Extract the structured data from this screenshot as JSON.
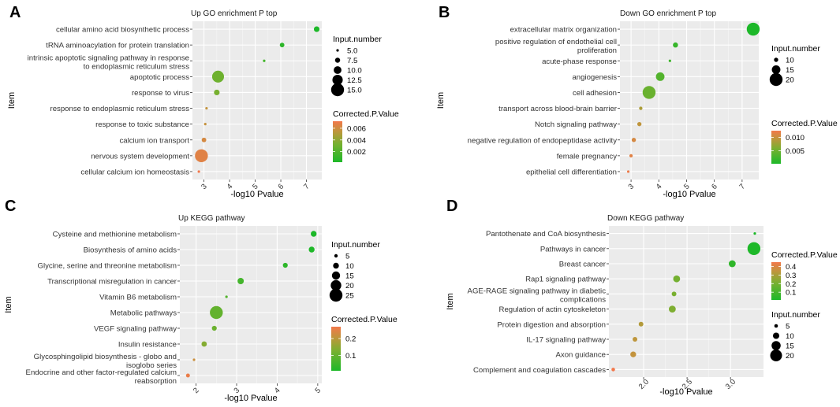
{
  "chart_data": [
    {
      "type": "scatter",
      "panel_label": "A",
      "title": "Up GO enrichment P top",
      "xlabel": "-log10 Pvalue",
      "ylabel": "Item",
      "xlim": [
        2.55,
        7.6
      ],
      "xticks": [
        "3",
        "4",
        "5",
        "6",
        "7"
      ],
      "categories": [
        "cellular amino acid biosynthetic process",
        "tRNA aminoacylation for protein translation",
        "intrinsic apoptotic signaling pathway in response\nto endoplasmic reticulum stress",
        "apoptotic process",
        "response to virus",
        "response to endoplasmic reticulum stress",
        "response to toxic substance",
        "calcium ion transport",
        "nervous system development",
        "cellular calcium ion homeostasis"
      ],
      "x": [
        7.4,
        6.05,
        5.35,
        3.55,
        3.5,
        3.1,
        3.05,
        3.0,
        2.9,
        2.8
      ],
      "size": [
        8,
        7,
        5,
        14,
        8,
        5,
        5,
        7,
        15,
        5
      ],
      "corrected_p": [
        0.0002,
        0.0008,
        0.0015,
        0.003,
        0.0033,
        0.0056,
        0.0057,
        0.0062,
        0.0066,
        0.0072
      ],
      "size_legend_title": "Input.number",
      "size_legend": [
        "5.0",
        "7.5",
        "10.0",
        "12.5",
        "15.0"
      ],
      "size_legend_values": [
        5,
        7.5,
        10,
        12.5,
        15
      ],
      "size_range": [
        5,
        15
      ],
      "color_legend_title": "Corrected.P.Value",
      "color_legend_ticks": [
        "0.006",
        "0.004",
        "0.002"
      ],
      "color_legend_values": [
        0.006,
        0.004,
        0.002
      ],
      "color_range": [
        0.0002,
        0.0072
      ]
    },
    {
      "type": "scatter",
      "panel_label": "B",
      "title": "Down GO enrichment P top",
      "xlabel": "-log10 Pvalue",
      "ylabel": "Item",
      "xlim": [
        2.6,
        7.6
      ],
      "xticks": [
        "3",
        "4",
        "5",
        "6",
        "7"
      ],
      "categories": [
        "extracellular matrix organization",
        "positive regulation of endothelial cell\nproliferation",
        "acute-phase response",
        "angiogenesis",
        "cell adhesion",
        "transport across blood-brain barrier",
        "Notch signaling pathway",
        "negative regulation of endopeptidase activity",
        "female pregnancy",
        "epithelial cell differentiation"
      ],
      "x": [
        7.4,
        4.6,
        4.4,
        4.05,
        3.65,
        3.35,
        3.3,
        3.1,
        3.0,
        2.9
      ],
      "size": [
        20,
        11,
        8,
        15,
        20,
        9,
        10,
        10,
        9,
        8
      ],
      "corrected_p": [
        0.0002,
        0.0018,
        0.0022,
        0.0035,
        0.0048,
        0.0085,
        0.0095,
        0.0108,
        0.0115,
        0.0122
      ],
      "size_legend_title": "Input.number",
      "size_legend": [
        "10",
        "15",
        "20"
      ],
      "size_legend_values": [
        10,
        15,
        20
      ],
      "size_range": [
        8,
        20
      ],
      "color_legend_title": "Corrected.P.Value",
      "color_legend_ticks": [
        "0.010",
        "0.005"
      ],
      "color_legend_values": [
        0.01,
        0.005
      ],
      "color_range": [
        0.0002,
        0.0125
      ]
    },
    {
      "type": "scatter",
      "panel_label": "C",
      "title": "Up KEGG pathway",
      "xlabel": "-log10 Pvalue",
      "ylabel": "Item",
      "xlim": [
        1.6,
        5.1
      ],
      "xticks": [
        "2",
        "3",
        "4",
        "5"
      ],
      "categories": [
        "Cysteine and methionine metabolism",
        "Biosynthesis of amino acids",
        "Glycine, serine and threonine metabolism",
        "Transcriptional misregulation in cancer",
        "Vitamin B6 metabolism",
        "Metabolic pathways",
        "VEGF signaling pathway",
        "Insulin resistance",
        "Glycosphingolipid biosynthesis - globo and\nisoglobo series",
        "Endocrine and other factor-regulated calcium\nreabsorption"
      ],
      "x": [
        4.9,
        4.85,
        4.2,
        3.1,
        2.75,
        2.5,
        2.45,
        2.2,
        1.95,
        1.8
      ],
      "size": [
        10,
        10,
        8,
        11,
        3,
        25,
        8,
        9,
        3,
        6
      ],
      "corrected_p": [
        0.01,
        0.012,
        0.03,
        0.06,
        0.08,
        0.1,
        0.11,
        0.14,
        0.22,
        0.26
      ],
      "size_legend_title": "Input.number",
      "size_legend": [
        "5",
        "10",
        "15",
        "20",
        "25"
      ],
      "size_legend_values": [
        5,
        10,
        15,
        20,
        25
      ],
      "size_range": [
        3,
        25
      ],
      "color_legend_title": "Corrected.P.Value",
      "color_legend_ticks": [
        "0.2",
        "0.1"
      ],
      "color_legend_values": [
        0.2,
        0.1
      ],
      "color_range": [
        0.01,
        0.27
      ]
    },
    {
      "type": "scatter",
      "panel_label": "D",
      "title": "Down KEGG pathway",
      "xlabel": "-log10 Pvalue",
      "ylabel": "Item",
      "xlim": [
        1.6,
        3.38
      ],
      "xticks": [
        "2.0",
        "2.5",
        "3.0"
      ],
      "categories": [
        "Pantothenate and CoA biosynthesis",
        "Pathways in cancer",
        "Breast cancer",
        "Rap1 signaling pathway",
        "AGE-RAGE signaling pathway in diabetic\ncomplications",
        "Regulation of actin cytoskeleton",
        "Protein digestion and absorption",
        "IL-17 signaling pathway",
        "Axon guidance",
        "Complement and coagulation cascades"
      ],
      "x": [
        3.28,
        3.27,
        3.02,
        2.38,
        2.35,
        2.33,
        1.97,
        1.9,
        1.88,
        1.65
      ],
      "size": [
        3,
        22,
        11,
        11,
        7,
        11,
        7,
        7,
        9,
        5
      ],
      "corrected_p": [
        0.01,
        0.012,
        0.05,
        0.2,
        0.21,
        0.22,
        0.32,
        0.34,
        0.35,
        0.45
      ],
      "size_legend_title": "Input.number",
      "size_legend": [
        "5",
        "10",
        "15",
        "20"
      ],
      "size_legend_values": [
        5,
        10,
        15,
        20
      ],
      "size_range": [
        3,
        22
      ],
      "color_legend_title": "Corrected.P.Value",
      "color_legend_ticks": [
        "0.4",
        "0.3",
        "0.2",
        "0.1"
      ],
      "color_legend_values": [
        0.4,
        0.3,
        0.2,
        0.1
      ],
      "color_range": [
        0.01,
        0.45
      ]
    }
  ]
}
